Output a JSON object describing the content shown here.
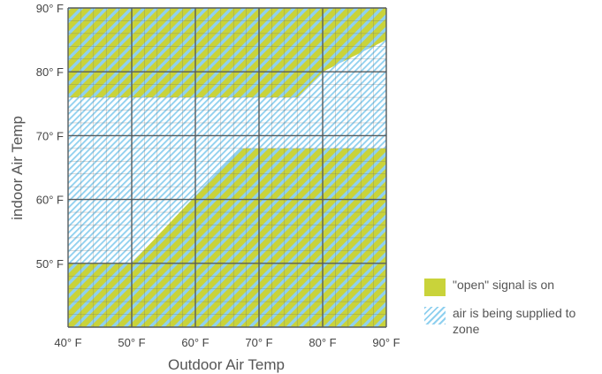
{
  "chart_data": {
    "type": "area",
    "xlabel": "Outdoor Air Temp",
    "ylabel": "indoor Air Temp",
    "xlim": [
      40,
      90
    ],
    "ylim": [
      40,
      90
    ],
    "x_ticks": [
      "40° F",
      "50° F",
      "60° F",
      "70° F",
      "80° F",
      "90° F"
    ],
    "y_ticks": [
      "50° F",
      "60° F",
      "70° F",
      "80° F",
      "90° F"
    ],
    "grid": true,
    "regions": [
      {
        "name": "\"open\" signal is on",
        "color": "#c9d33a",
        "polygons": [
          [
            [
              40,
              90
            ],
            [
              90,
              90
            ],
            [
              90,
              85
            ],
            [
              80,
              80
            ],
            [
              76,
              76
            ],
            [
              40,
              76
            ]
          ],
          [
            [
              40,
              40
            ],
            [
              90,
              40
            ],
            [
              90,
              68
            ],
            [
              67,
              68
            ],
            [
              50,
              50
            ],
            [
              40,
              50
            ]
          ]
        ]
      },
      {
        "name": "air is being supplied to zone",
        "color": "#8fd0ef",
        "pattern": "hatched",
        "polygons": [
          [
            [
              40,
              40
            ],
            [
              90,
              40
            ],
            [
              90,
              90
            ],
            [
              40,
              90
            ]
          ]
        ]
      }
    ]
  },
  "legend": {
    "items": [
      {
        "label": "\"open\" signal is on",
        "swatch": "green"
      },
      {
        "label": "air is being supplied to zone",
        "swatch": "blue"
      }
    ]
  }
}
